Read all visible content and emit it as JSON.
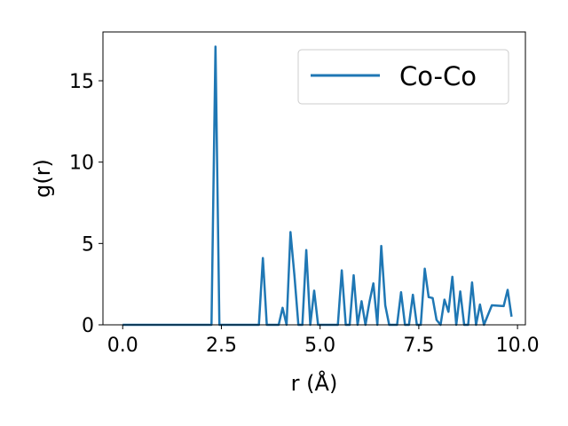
{
  "chart_data": {
    "type": "line",
    "xlabel": "r (Å)",
    "ylabel": "g(r)",
    "xlim": [
      -0.5,
      10.2
    ],
    "ylim": [
      0,
      18
    ],
    "xticks": [
      0.0,
      2.5,
      5.0,
      7.5,
      10.0
    ],
    "xtick_labels": [
      "0.0",
      "2.5",
      "5.0",
      "7.5",
      "10.0"
    ],
    "yticks": [
      0,
      5,
      10,
      15
    ],
    "ytick_labels": [
      "0",
      "5",
      "10",
      "15"
    ],
    "grid": false,
    "legend_position": "top-right",
    "series": [
      {
        "name": "Co-Co",
        "color": "#1f77b4",
        "x": [
          0.0,
          2.25,
          2.35,
          2.45,
          2.55,
          3.35,
          3.45,
          3.55,
          3.65,
          3.85,
          3.95,
          4.05,
          4.15,
          4.25,
          4.35,
          4.45,
          4.55,
          4.65,
          4.75,
          4.85,
          4.95,
          5.45,
          5.55,
          5.65,
          5.75,
          5.85,
          5.95,
          6.05,
          6.15,
          6.25,
          6.35,
          6.45,
          6.55,
          6.65,
          6.75,
          6.95,
          7.05,
          7.15,
          7.25,
          7.35,
          7.45,
          7.55,
          7.65,
          7.75,
          7.85,
          7.95,
          8.05,
          8.15,
          8.25,
          8.35,
          8.45,
          8.55,
          8.65,
          8.75,
          8.85,
          8.95,
          9.05,
          9.15,
          9.35,
          9.65,
          9.75,
          9.85
        ],
        "y": [
          0,
          0,
          17.1,
          0,
          0,
          0,
          0,
          4.1,
          0,
          0,
          0,
          1.05,
          0,
          5.7,
          3.0,
          0,
          0,
          4.6,
          0,
          2.1,
          0,
          0,
          3.35,
          0,
          0,
          3.05,
          0,
          1.45,
          0,
          1.4,
          2.55,
          0,
          4.85,
          1.2,
          0,
          0,
          2.0,
          0,
          0,
          1.85,
          0,
          0,
          3.45,
          1.7,
          1.65,
          0.3,
          0,
          1.55,
          0.8,
          2.95,
          0,
          2.05,
          0,
          0,
          2.6,
          0,
          1.25,
          0,
          1.2,
          1.15,
          2.15,
          0.5
        ]
      }
    ]
  }
}
